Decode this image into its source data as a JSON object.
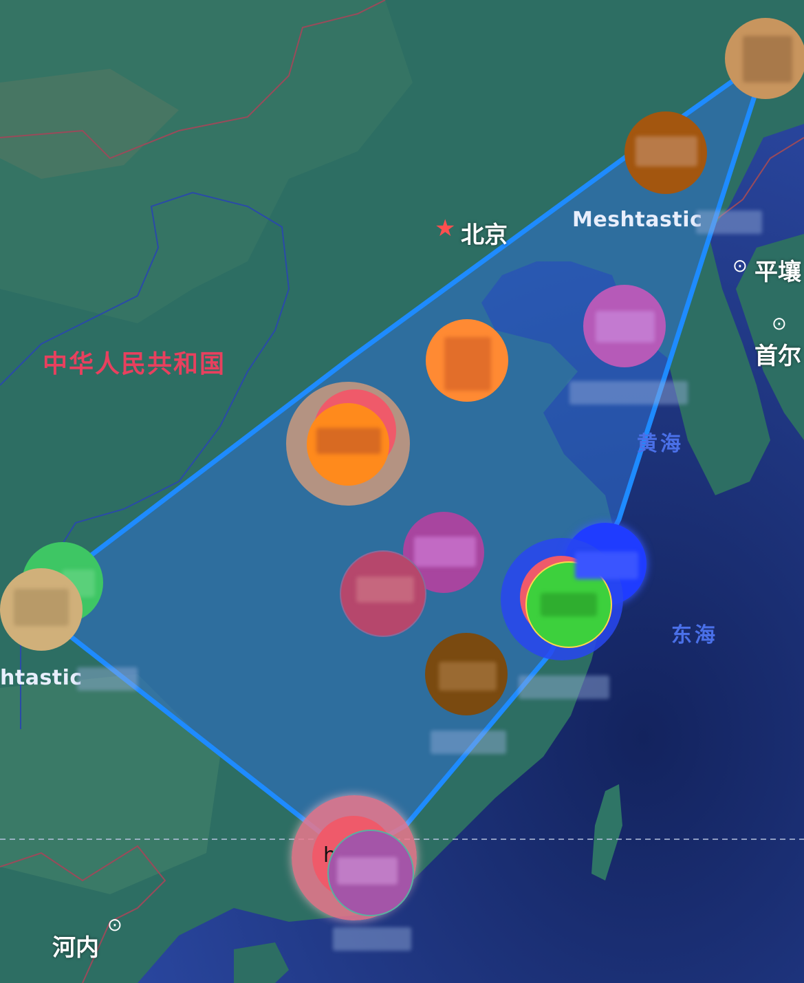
{
  "map": {
    "labels": {
      "capital": "北京",
      "country": "中华人民共和国",
      "pyongyang": "平壤",
      "seoul": "首尔",
      "yellow_sea": "黄海",
      "east_sea": "东海",
      "hanoi": "河内"
    },
    "mesh_labels": {
      "northeast": "Meshtastic",
      "west": "htastic"
    },
    "area_fill_color": "#2f6fd0",
    "area_stroke_color": "#1e8bff",
    "land_color": "#2d6e63",
    "sea_color": "#243e8c",
    "country_label_color": "#e8405e",
    "node_colors": {
      "top_right": "#c8955e",
      "northeast": "#a3560f",
      "shandong": "#b65ab8",
      "north_center": "#ff8a33",
      "central_orange": "#ff8a1c",
      "central_purple": "#a8459f",
      "central_pink": "#b6476c",
      "shanghai_blue": "#1f3cff",
      "shanghai_green": "#3dd03d",
      "southeast_brown": "#7a4a10",
      "west_green": "#3ec664",
      "west_tan": "#d0b07a",
      "guangdong_pink": "#ef6a82",
      "guangdong_purple": "#a455a8"
    },
    "south_node_glyph": "h"
  }
}
